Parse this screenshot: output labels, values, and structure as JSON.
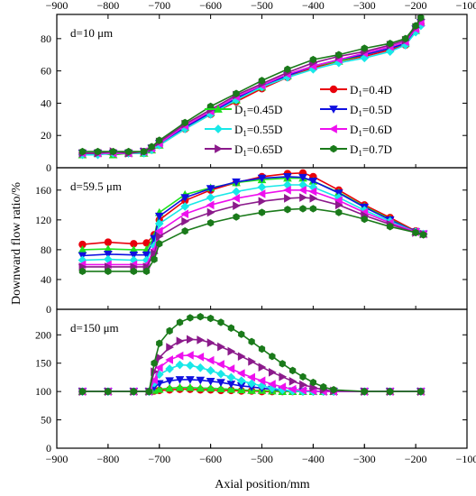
{
  "chart_data": {
    "type": "line",
    "xlabel": "Axial position/mm",
    "ylabel": "Downward flow ratio/%",
    "xlim": [
      -900,
      -100
    ],
    "xticks": [
      "−900",
      "−800",
      "−700",
      "−600",
      "−500",
      "−400",
      "−300",
      "−200",
      "−100"
    ],
    "legend": {
      "placement": "inside top panel, right",
      "entries": [
        {
          "main": "D",
          "sub": "1",
          "tail": "=0.4D"
        },
        {
          "main": "D",
          "sub": "1",
          "tail": "=0.45D"
        },
        {
          "main": "D",
          "sub": "1",
          "tail": "=0.5D"
        },
        {
          "main": "D",
          "sub": "1",
          "tail": "=0.55D"
        },
        {
          "main": "D",
          "sub": "1",
          "tail": "=0.6D"
        },
        {
          "main": "D",
          "sub": "1",
          "tail": "=0.65D"
        },
        {
          "main": "D",
          "sub": "1",
          "tail": "=0.7D"
        }
      ]
    },
    "series_style": [
      {
        "color": "#e8000b",
        "marker": "circle"
      },
      {
        "color": "#1fe01f",
        "marker": "triangle-up"
      },
      {
        "color": "#1010e0",
        "marker": "triangle-down"
      },
      {
        "color": "#18e8e8",
        "marker": "diamond"
      },
      {
        "color": "#ee10ee",
        "marker": "triangle-left"
      },
      {
        "color": "#8b1a8b",
        "marker": "triangle-right"
      },
      {
        "color": "#1a7a1a",
        "marker": "hexagon"
      }
    ],
    "panels": [
      {
        "label": "d=10 μm",
        "ylim": [
          0,
          95
        ],
        "yticks": [
          0,
          20,
          40,
          60,
          80
        ],
        "x": [
          -850,
          -820,
          -790,
          -760,
          -730,
          -715,
          -700,
          -650,
          -600,
          -550,
          -500,
          -450,
          -400,
          -350,
          -300,
          -250,
          -220,
          -200,
          -190
        ],
        "series": [
          {
            "values": [
              9,
              9,
              9,
              9,
              9,
              11,
              14,
              24,
              33,
              41,
              49,
              56,
              62,
              66,
              69,
              73,
              76,
              85,
              89
            ]
          },
          {
            "values": [
              8,
              9,
              8,
              9,
              9,
              11,
              14,
              25,
              34,
              42,
              50,
              57,
              63,
              66,
              70,
              74,
              77,
              85,
              90
            ]
          },
          {
            "values": [
              9,
              9,
              9,
              9,
              10,
              12,
              15,
              25,
              34,
              43,
              51,
              57,
              63,
              67,
              70,
              74,
              77,
              86,
              90
            ]
          },
          {
            "values": [
              8,
              8,
              9,
              9,
              9,
              11,
              14,
              24,
              33,
              42,
              50,
              56,
              61,
              65,
              68,
              72,
              76,
              84,
              88
            ]
          },
          {
            "values": [
              9,
              9,
              9,
              9,
              10,
              12,
              15,
              26,
              35,
              44,
              51,
              58,
              63,
              67,
              71,
              75,
              78,
              86,
              90
            ]
          },
          {
            "values": [
              9,
              9,
              10,
              9,
              10,
              12,
              16,
              27,
              36,
              45,
              52,
              59,
              65,
              69,
              72,
              76,
              79,
              87,
              92
            ]
          },
          {
            "values": [
              10,
              10,
              10,
              10,
              10,
              13,
              17,
              28,
              38,
              46,
              54,
              61,
              67,
              70,
              74,
              77,
              80,
              88,
              93
            ]
          }
        ]
      },
      {
        "label": "d=59.5 μm",
        "ylim": [
          0,
          190
        ],
        "yticks": [
          0,
          40,
          80,
          120,
          160
        ],
        "x": [
          -850,
          -800,
          -750,
          -725,
          -710,
          -700,
          -650,
          -600,
          -550,
          -500,
          -450,
          -420,
          -400,
          -350,
          -300,
          -250,
          -200,
          -185
        ],
        "series": [
          {
            "values": [
              87,
              90,
              88,
              89,
              100,
              120,
              146,
              160,
              170,
              178,
              182,
              183,
              178,
              160,
              140,
              123,
              105,
              101
            ]
          },
          {
            "values": [
              80,
              81,
              80,
              80,
              98,
              130,
              154,
              163,
              170,
              174,
              176,
              176,
              172,
              157,
              138,
              121,
              104,
              101
            ]
          },
          {
            "values": [
              72,
              74,
              73,
              73,
              95,
              125,
              150,
              162,
              171,
              176,
              178,
              177,
              172,
              156,
              137,
              120,
              104,
              101
            ]
          },
          {
            "values": [
              66,
              67,
              66,
              66,
              85,
              115,
              138,
              150,
              158,
              164,
              167,
              167,
              164,
              150,
              133,
              118,
              104,
              101
            ]
          },
          {
            "values": [
              60,
              60,
              60,
              60,
              80,
              105,
              128,
              140,
              149,
              155,
              160,
              160,
              158,
              146,
              130,
              116,
              104,
              101
            ]
          },
          {
            "values": [
              57,
              57,
              57,
              57,
              75,
              98,
              118,
              130,
              139,
              145,
              149,
              150,
              149,
              140,
              126,
              114,
              103,
              101
            ]
          },
          {
            "values": [
              51,
              51,
              51,
              51,
              67,
              88,
              105,
              116,
              124,
              130,
              134,
              135,
              135,
              130,
              121,
              111,
              103,
              100
            ]
          }
        ]
      },
      {
        "label": "d=150 μm",
        "ylim": [
          0,
          245
        ],
        "yticks": [
          0,
          50,
          100,
          150,
          200
        ],
        "x": [
          -850,
          -800,
          -750,
          -720,
          -710,
          -700,
          -680,
          -660,
          -640,
          -620,
          -600,
          -580,
          -560,
          -540,
          -520,
          -500,
          -480,
          -460,
          -440,
          -420,
          -400,
          -380,
          -360,
          -300,
          -250,
          -190
        ],
        "series": [
          {
            "values": [
              100,
              100,
              100,
              100,
              101,
              102,
              103,
              104,
              104,
              103,
              103,
              102,
              102,
              101,
              101,
              100,
              100,
              100,
              100,
              100,
              100,
              100,
              100,
              100,
              100,
              100
            ]
          },
          {
            "values": [
              100,
              100,
              100,
              100,
              102,
              104,
              106,
              107,
              107,
              106,
              106,
              105,
              104,
              103,
              102,
              102,
              101,
              100,
              100,
              100,
              100,
              100,
              100,
              100,
              100,
              100
            ]
          },
          {
            "values": [
              100,
              100,
              100,
              100,
              108,
              114,
              119,
              121,
              121,
              120,
              118,
              116,
              113,
              110,
              108,
              106,
              104,
              102,
              101,
              100,
              100,
              100,
              100,
              100,
              100,
              100
            ]
          },
          {
            "values": [
              100,
              100,
              100,
              100,
              115,
              130,
              140,
              147,
              146,
              142,
              137,
              131,
              125,
              119,
              114,
              110,
              106,
              103,
              101,
              100,
              100,
              100,
              100,
              100,
              100,
              100
            ]
          },
          {
            "values": [
              100,
              100,
              100,
              100,
              120,
              142,
              156,
              163,
              164,
              161,
              155,
              148,
              140,
              132,
              125,
              119,
              113,
              108,
              104,
              102,
              101,
              100,
              100,
              100,
              100,
              100
            ]
          },
          {
            "values": [
              100,
              100,
              100,
              100,
              135,
              160,
              178,
              189,
              192,
              191,
              186,
              179,
              171,
              162,
              153,
              143,
              134,
              126,
              118,
              112,
              107,
              103,
              101,
              100,
              100,
              100
            ]
          },
          {
            "values": [
              100,
              100,
              100,
              100,
              150,
              185,
              207,
              222,
              230,
              232,
              229,
              222,
              212,
              201,
              188,
              175,
              162,
              149,
              137,
              126,
              116,
              108,
              103,
              100,
              100,
              100
            ]
          }
        ]
      }
    ]
  }
}
